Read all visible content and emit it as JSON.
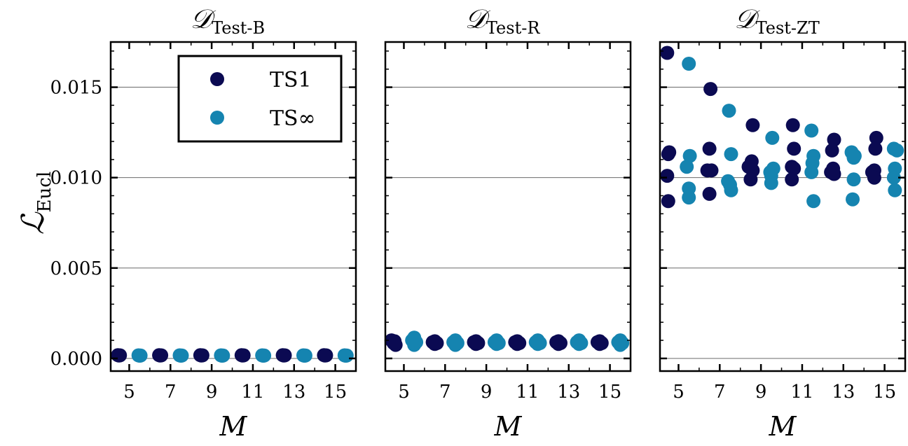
{
  "chart_data": {
    "type": "scatter",
    "ylabel_main": "ℒ",
    "ylabel_sub": "Eucl",
    "ylim": [
      -0.0007,
      0.0175
    ],
    "yticks": [
      0.0,
      0.005,
      0.01,
      0.015
    ],
    "ytick_labels": [
      "0.000",
      "0.005",
      "0.010",
      "0.015"
    ],
    "xlim": [
      4.1,
      16.0
    ],
    "xticks": [
      5,
      7,
      9,
      11,
      13,
      15
    ],
    "xtick_labels": [
      "5",
      "7",
      "9",
      "11",
      "13",
      "15"
    ],
    "xlabel": "M",
    "grid": "horizontal",
    "colors": {
      "TS1": "#0b0a52",
      "TSinf": "#1584b0"
    },
    "legend": {
      "placement": "top-right of first panel",
      "entries": [
        {
          "key": "TS1",
          "label": "TS1"
        },
        {
          "key": "TSinf",
          "label": "TS∞"
        }
      ]
    },
    "panels": [
      {
        "title_main": "𝒟",
        "title_sub": "Test-B",
        "series": [
          {
            "name": "TS1",
            "points": [
              [
                4.45,
                0.00018
              ],
              [
                4.55,
                0.00017
              ],
              [
                4.5,
                0.00016
              ],
              [
                6.45,
                0.00018
              ],
              [
                6.55,
                0.00017
              ],
              [
                6.5,
                0.00016
              ],
              [
                8.45,
                0.00018
              ],
              [
                8.55,
                0.00017
              ],
              [
                8.5,
                0.00016
              ],
              [
                10.45,
                0.00018
              ],
              [
                10.55,
                0.00017
              ],
              [
                10.5,
                0.00016
              ],
              [
                12.45,
                0.00018
              ],
              [
                12.55,
                0.00017
              ],
              [
                12.5,
                0.00016
              ],
              [
                14.45,
                0.00018
              ],
              [
                14.55,
                0.00017
              ],
              [
                14.5,
                0.00016
              ]
            ]
          },
          {
            "name": "TSinf",
            "points": [
              [
                5.45,
                0.00017
              ],
              [
                5.55,
                0.00016
              ],
              [
                5.5,
                0.00015
              ],
              [
                7.45,
                0.00017
              ],
              [
                7.55,
                0.00016
              ],
              [
                7.5,
                0.00015
              ],
              [
                9.45,
                0.00017
              ],
              [
                9.55,
                0.00016
              ],
              [
                9.5,
                0.00015
              ],
              [
                11.45,
                0.00017
              ],
              [
                11.55,
                0.00016
              ],
              [
                11.5,
                0.00015
              ],
              [
                13.45,
                0.00017
              ],
              [
                13.55,
                0.00016
              ],
              [
                13.5,
                0.00015
              ],
              [
                15.45,
                0.00017
              ],
              [
                15.55,
                0.00016
              ],
              [
                15.5,
                0.00015
              ]
            ]
          }
        ]
      },
      {
        "title_main": "𝒟",
        "title_sub": "Test-R",
        "series": [
          {
            "name": "TS1",
            "points": [
              [
                4.4,
                0.001
              ],
              [
                4.5,
                0.00085
              ],
              [
                4.6,
                0.00075
              ],
              [
                4.55,
                0.00095
              ],
              [
                6.4,
                0.0009
              ],
              [
                6.5,
                0.0008
              ],
              [
                6.6,
                0.00085
              ],
              [
                6.5,
                0.00095
              ],
              [
                8.4,
                0.0009
              ],
              [
                8.5,
                0.0008
              ],
              [
                8.6,
                0.00085
              ],
              [
                8.5,
                0.00095
              ],
              [
                10.4,
                0.0009
              ],
              [
                10.5,
                0.0008
              ],
              [
                10.6,
                0.00085
              ],
              [
                10.5,
                0.00095
              ],
              [
                12.4,
                0.0009
              ],
              [
                12.5,
                0.0008
              ],
              [
                12.6,
                0.00085
              ],
              [
                12.5,
                0.00095
              ],
              [
                14.4,
                0.0009
              ],
              [
                14.5,
                0.0008
              ],
              [
                14.6,
                0.00085
              ],
              [
                14.5,
                0.00095
              ]
            ]
          },
          {
            "name": "TSinf",
            "points": [
              [
                5.4,
                0.001
              ],
              [
                5.5,
                0.00115
              ],
              [
                5.6,
                0.0009
              ],
              [
                5.5,
                0.00075
              ],
              [
                7.4,
                0.0009
              ],
              [
                7.5,
                0.001
              ],
              [
                7.6,
                0.00085
              ],
              [
                7.5,
                0.00075
              ],
              [
                9.4,
                0.0009
              ],
              [
                9.5,
                0.001
              ],
              [
                9.6,
                0.00085
              ],
              [
                9.5,
                0.0008
              ],
              [
                11.4,
                0.0009
              ],
              [
                11.5,
                0.001
              ],
              [
                11.6,
                0.00085
              ],
              [
                11.5,
                0.0008
              ],
              [
                13.4,
                0.0009
              ],
              [
                13.5,
                0.001
              ],
              [
                13.6,
                0.00085
              ],
              [
                13.5,
                0.0008
              ],
              [
                15.4,
                0.0009
              ],
              [
                15.5,
                0.001
              ],
              [
                15.6,
                0.00085
              ],
              [
                15.5,
                0.00075
              ]
            ]
          }
        ]
      },
      {
        "title_main": "𝒟",
        "title_sub": "Test-ZT",
        "series": [
          {
            "name": "TS1",
            "points": [
              [
                4.45,
                0.0169
              ],
              [
                4.55,
                0.0114
              ],
              [
                4.5,
                0.0113
              ],
              [
                4.45,
                0.0101
              ],
              [
                4.5,
                0.0087
              ],
              [
                6.55,
                0.0149
              ],
              [
                6.5,
                0.0116
              ],
              [
                6.4,
                0.0104
              ],
              [
                6.6,
                0.0104
              ],
              [
                6.5,
                0.0091
              ],
              [
                8.6,
                0.0129
              ],
              [
                8.55,
                0.0109
              ],
              [
                8.4,
                0.0106
              ],
              [
                8.6,
                0.0104
              ],
              [
                8.5,
                0.0099
              ],
              [
                10.55,
                0.0129
              ],
              [
                10.6,
                0.0116
              ],
              [
                10.5,
                0.0106
              ],
              [
                10.6,
                0.0105
              ],
              [
                10.5,
                0.0099
              ],
              [
                12.55,
                0.0121
              ],
              [
                12.45,
                0.0115
              ],
              [
                12.5,
                0.0105
              ],
              [
                12.4,
                0.0103
              ],
              [
                12.55,
                0.0102
              ],
              [
                14.6,
                0.0122
              ],
              [
                14.55,
                0.0116
              ],
              [
                14.5,
                0.0104
              ],
              [
                14.4,
                0.0103
              ],
              [
                14.5,
                0.01
              ]
            ]
          },
          {
            "name": "TSinf",
            "points": [
              [
                5.5,
                0.0163
              ],
              [
                5.55,
                0.0112
              ],
              [
                5.4,
                0.0106
              ],
              [
                5.5,
                0.0094
              ],
              [
                5.5,
                0.0089
              ],
              [
                7.45,
                0.0137
              ],
              [
                7.55,
                0.0113
              ],
              [
                7.4,
                0.0098
              ],
              [
                7.5,
                0.0096
              ],
              [
                7.55,
                0.0093
              ],
              [
                9.55,
                0.0122
              ],
              [
                9.6,
                0.0105
              ],
              [
                9.45,
                0.0103
              ],
              [
                9.5,
                0.0101
              ],
              [
                9.5,
                0.0097
              ],
              [
                11.45,
                0.0126
              ],
              [
                11.55,
                0.0112
              ],
              [
                11.5,
                0.0108
              ],
              [
                11.45,
                0.0103
              ],
              [
                11.55,
                0.0087
              ],
              [
                13.4,
                0.0114
              ],
              [
                13.55,
                0.0112
              ],
              [
                13.5,
                0.0111
              ],
              [
                13.5,
                0.0099
              ],
              [
                13.45,
                0.0088
              ],
              [
                15.45,
                0.0116
              ],
              [
                15.6,
                0.0115
              ],
              [
                15.5,
                0.0105
              ],
              [
                15.45,
                0.01
              ],
              [
                15.5,
                0.0093
              ]
            ]
          }
        ]
      }
    ]
  }
}
